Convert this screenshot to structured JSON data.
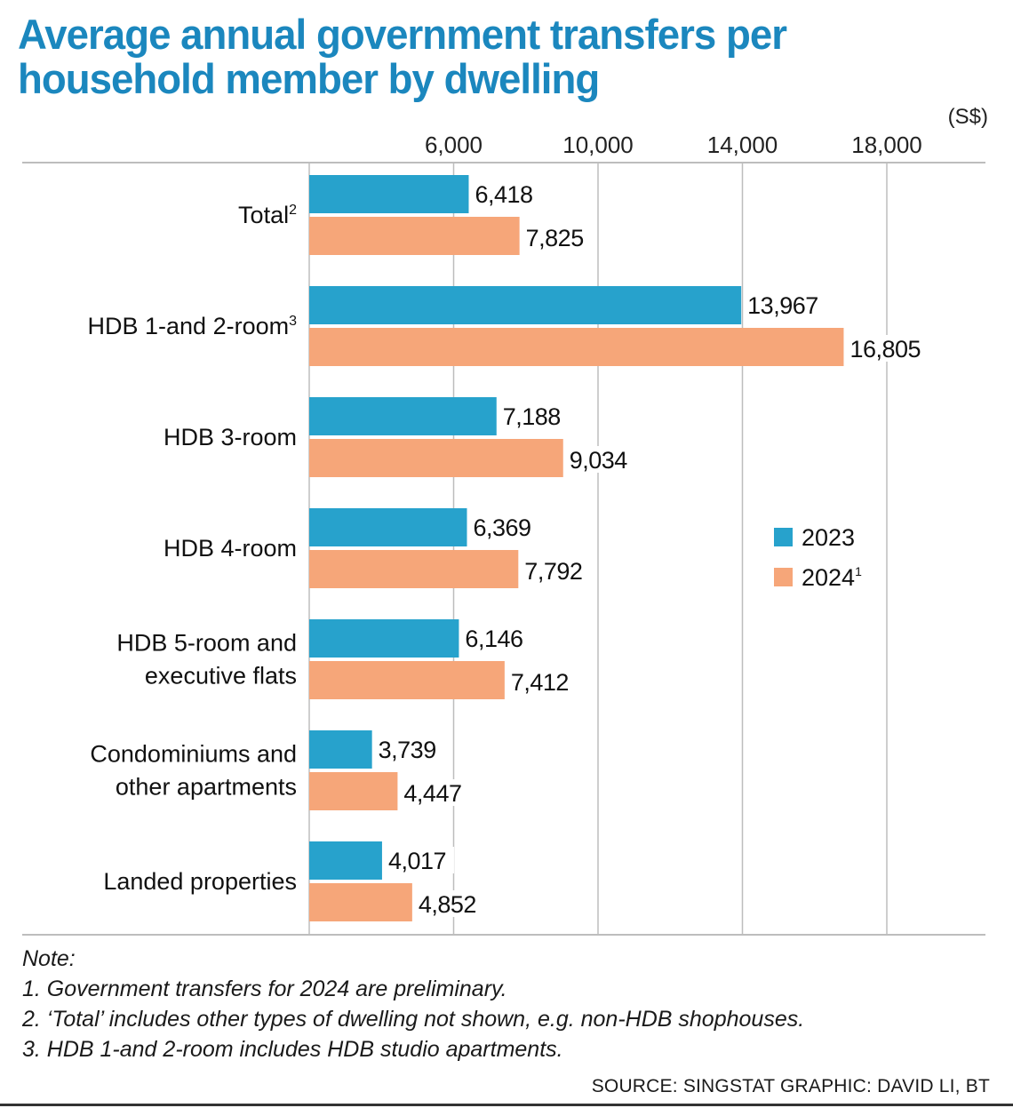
{
  "title": "Average annual government transfers per household member by dwelling",
  "unit_label": "(S$)",
  "notes": {
    "heading": "Note:",
    "items": [
      "1. Government transfers for 2024 are preliminary.",
      "2. ‘Total’ includes other types of dwelling not shown, e.g. non-HDB shophouses.",
      "3. HDB 1-and 2-room includes HDB studio apartments."
    ]
  },
  "source": "SOURCE: SINGSTAT   GRAPHIC: DAVID LI, BT",
  "colors": {
    "title": "#1B87BE",
    "series_2023": "#27A2CC",
    "series_2024": "#F6A679",
    "grid": "#BDBDBD"
  },
  "chart_data": {
    "type": "bar",
    "orientation": "horizontal",
    "title": "Average annual government transfers per household member by dwelling",
    "xlabel": "(S$)",
    "ylabel": "",
    "xlim": [
      2000,
      20000
    ],
    "xticks": [
      6000,
      10000,
      14000,
      18000
    ],
    "xtick_labels": [
      "6,000",
      "10,000",
      "14,000",
      "18,000"
    ],
    "grid": true,
    "legend_position": "right-middle",
    "categories": [
      {
        "lines": [
          "Total"
        ],
        "sup": "2"
      },
      {
        "lines": [
          "HDB 1-and 2-room"
        ],
        "sup": "3"
      },
      {
        "lines": [
          "HDB 3-room"
        ],
        "sup": ""
      },
      {
        "lines": [
          "HDB 4-room"
        ],
        "sup": ""
      },
      {
        "lines": [
          "HDB 5-room and",
          "executive flats"
        ],
        "sup": ""
      },
      {
        "lines": [
          "Condominiums and",
          "other apartments"
        ],
        "sup": ""
      },
      {
        "lines": [
          "Landed properties"
        ],
        "sup": ""
      }
    ],
    "series": [
      {
        "name": "2023",
        "sup": "",
        "color": "#27A2CC",
        "values": [
          6418,
          13967,
          7188,
          6369,
          6146,
          3739,
          4017
        ],
        "labels": [
          "6,418",
          "13,967",
          "7,188",
          "6,369",
          "6,146",
          "3,739",
          "4,017"
        ]
      },
      {
        "name": "2024",
        "sup": "1",
        "color": "#F6A679",
        "values": [
          7825,
          16805,
          9034,
          7792,
          7412,
          4447,
          4852
        ],
        "labels": [
          "7,825",
          "16,805",
          "9,034",
          "7,792",
          "7,412",
          "4,447",
          "4,852"
        ]
      }
    ]
  }
}
